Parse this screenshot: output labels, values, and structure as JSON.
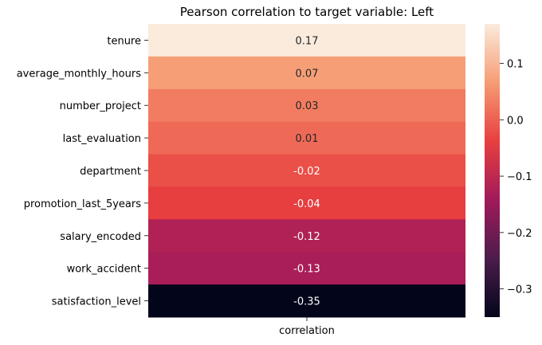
{
  "chart_data": {
    "type": "heatmap",
    "title": "Pearson correlation to target variable: Left",
    "xlabel": "",
    "ylabel": "",
    "columns": [
      "correlation"
    ],
    "rows": [
      {
        "label": "tenure",
        "value": 0.17
      },
      {
        "label": "average_monthly_hours",
        "value": 0.07
      },
      {
        "label": "number_project",
        "value": 0.03
      },
      {
        "label": "last_evaluation",
        "value": 0.01
      },
      {
        "label": "department",
        "value": -0.02
      },
      {
        "label": "promotion_last_5years",
        "value": -0.04
      },
      {
        "label": "salary_encoded",
        "value": -0.12
      },
      {
        "label": "work_accident",
        "value": -0.13
      },
      {
        "label": "satisfaction_level",
        "value": -0.35
      }
    ],
    "value_format": "0.00",
    "colorbar": {
      "min": -0.35,
      "max": 0.17,
      "ticks": [
        0.1,
        0.0,
        -0.1,
        -0.2,
        -0.3
      ],
      "tick_labels": [
        "0.1",
        "0.0",
        "−0.1",
        "−0.2",
        "−0.3"
      ],
      "colormap": "rocket",
      "stops": [
        "#03051a",
        "#4c1d4b",
        "#a11a5b",
        "#e83f3f",
        "#f69c73",
        "#faebdd"
      ]
    },
    "grid": false,
    "legend": "colorbar-right"
  }
}
